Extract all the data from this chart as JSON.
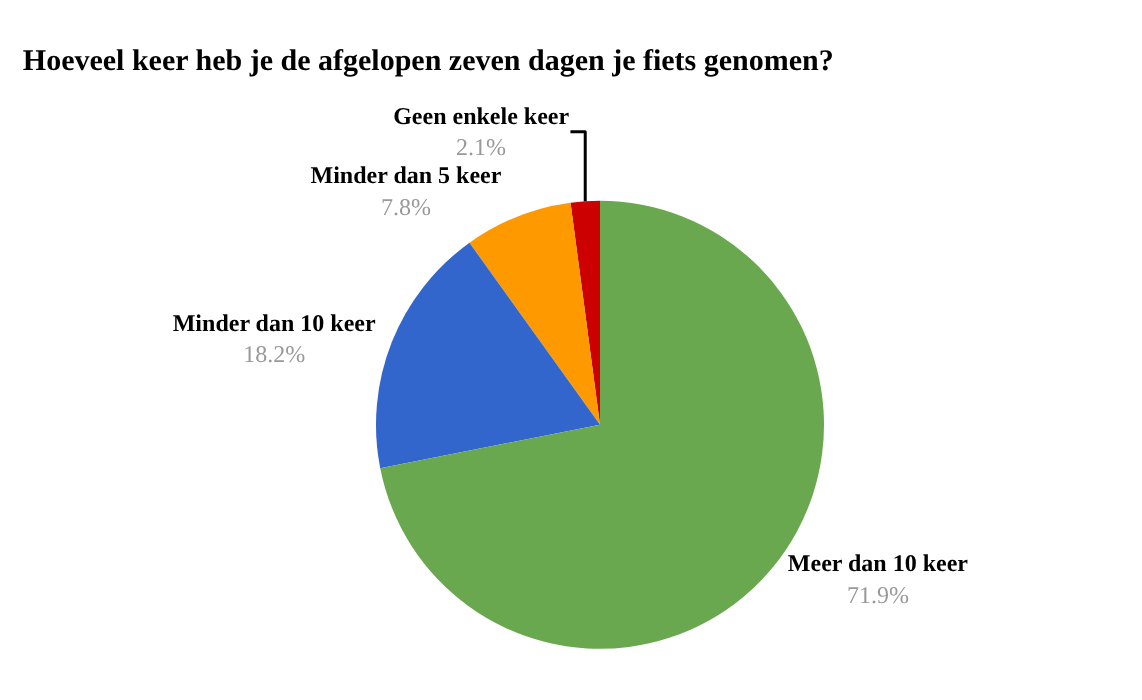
{
  "chart_data": {
    "type": "pie",
    "title": "Hoeveel keer heb je de afgelopen zeven dagen je fiets genomen?",
    "categories": [
      "Geen enkele keer",
      "Minder dan 5 keer",
      "Minder dan 10 keer",
      "Meer dan 10 keer"
    ],
    "values": [
      2.1,
      7.8,
      18.2,
      71.9
    ],
    "value_labels": [
      "2.1%",
      "7.8%",
      "18.2%",
      "71.9%"
    ],
    "colors": [
      "#cc0000",
      "#ff9900",
      "#3366cc",
      "#6aa84f"
    ],
    "legend": false
  }
}
